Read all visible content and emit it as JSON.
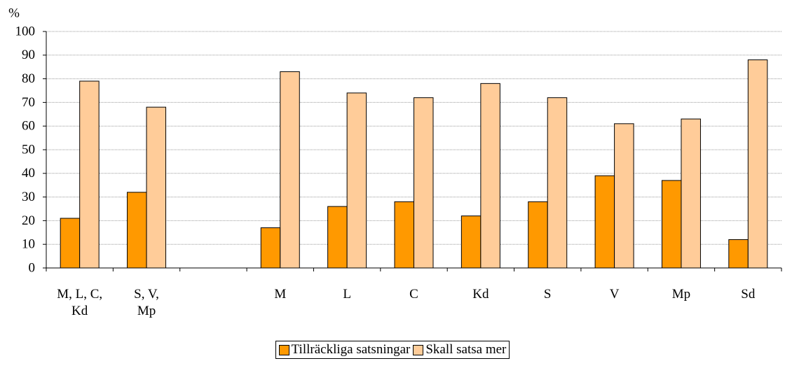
{
  "chart_data": {
    "type": "bar",
    "ylabel": "%",
    "categories": [
      "M, L, C,\nKd",
      "S, V,\nMp",
      null,
      "M",
      "L",
      "C",
      "Kd",
      "S",
      "V",
      "Mp",
      "Sd"
    ],
    "series": [
      {
        "name": "Tillräckliga satsningar",
        "color": "#ff9900",
        "values": [
          21,
          32,
          null,
          17,
          26,
          28,
          22,
          28,
          39,
          37,
          12
        ]
      },
      {
        "name": "Skall satsa mer",
        "color": "#ffcc99",
        "values": [
          79,
          68,
          null,
          83,
          74,
          72,
          78,
          72,
          61,
          63,
          88
        ]
      }
    ],
    "ylim": [
      0,
      100
    ],
    "yticks": [
      0,
      10,
      20,
      30,
      40,
      50,
      60,
      70,
      80,
      90,
      100
    ],
    "grid": true,
    "legend": "bottom"
  }
}
